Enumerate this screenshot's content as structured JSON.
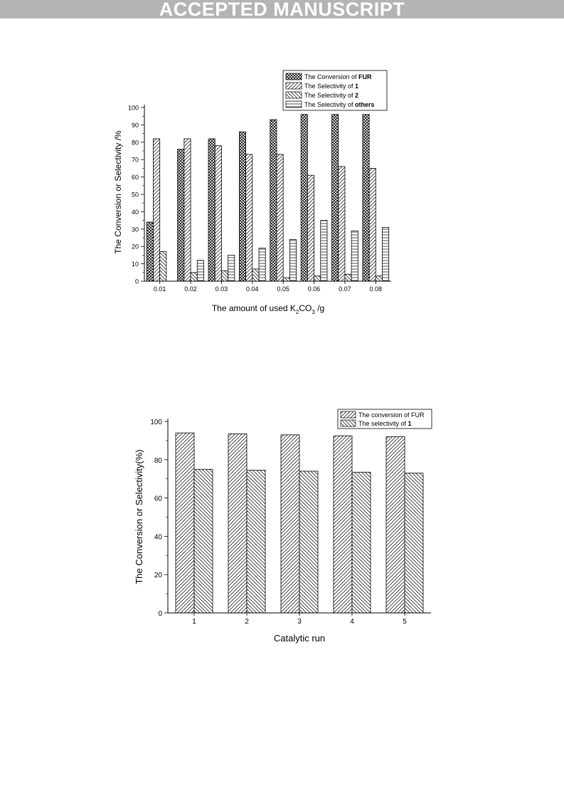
{
  "banner": "ACCEPTED MANUSCRIPT",
  "chart_data": [
    {
      "type": "bar",
      "categories": [
        "0.01",
        "0.02",
        "0.03",
        "0.04",
        "0.05",
        "0.06",
        "0.07",
        "0.08"
      ],
      "series": [
        {
          "name_parts": [
            "The Conversion of ",
            "FUR"
          ],
          "pattern": "crosshatch",
          "values": [
            34,
            76,
            82,
            86,
            93,
            96,
            96,
            96
          ]
        },
        {
          "name_parts": [
            "The Selectivity of ",
            "1"
          ],
          "pattern": "diag-right",
          "values": [
            82,
            82,
            78,
            73,
            73,
            61,
            66,
            65
          ]
        },
        {
          "name_parts": [
            "The Selectivity of ",
            "2"
          ],
          "pattern": "diag-left",
          "values": [
            17,
            5,
            6,
            7,
            2,
            3,
            4,
            3
          ]
        },
        {
          "name_parts": [
            "The Selectivity of ",
            "others"
          ],
          "pattern": "horizontal",
          "values": [
            0,
            12,
            15,
            19,
            24,
            35,
            29,
            31
          ]
        }
      ],
      "xlabel_parts": [
        "The amount of used K",
        "2",
        "CO",
        "3",
        " /g"
      ],
      "ylabel": "The Conversion or Selectivity /%",
      "ylim": [
        0,
        100
      ],
      "yticks": [
        "0",
        "10",
        "20",
        "30",
        "40",
        "50",
        "60",
        "70",
        "80",
        "90",
        "100"
      ],
      "legend_position": "top-right",
      "grid": false
    },
    {
      "type": "bar",
      "categories": [
        "1",
        "2",
        "3",
        "4",
        "5"
      ],
      "series": [
        {
          "name_parts": [
            "The conversion of FUR",
            ""
          ],
          "pattern": "diag-right",
          "values": [
            94,
            93.5,
            93,
            92.5,
            92
          ]
        },
        {
          "name_parts": [
            "The selectivity of ",
            "1"
          ],
          "pattern": "diag-left",
          "values": [
            75,
            74.5,
            74,
            73.5,
            73
          ]
        }
      ],
      "xlabel_parts": [
        "Catalytic run"
      ],
      "ylabel": "The Conversion or Selectivity(%)",
      "ylim": [
        0,
        100
      ],
      "yticks": [
        "0",
        "20",
        "40",
        "60",
        "80",
        "100"
      ],
      "legend_position": "top-right",
      "grid": false
    }
  ]
}
